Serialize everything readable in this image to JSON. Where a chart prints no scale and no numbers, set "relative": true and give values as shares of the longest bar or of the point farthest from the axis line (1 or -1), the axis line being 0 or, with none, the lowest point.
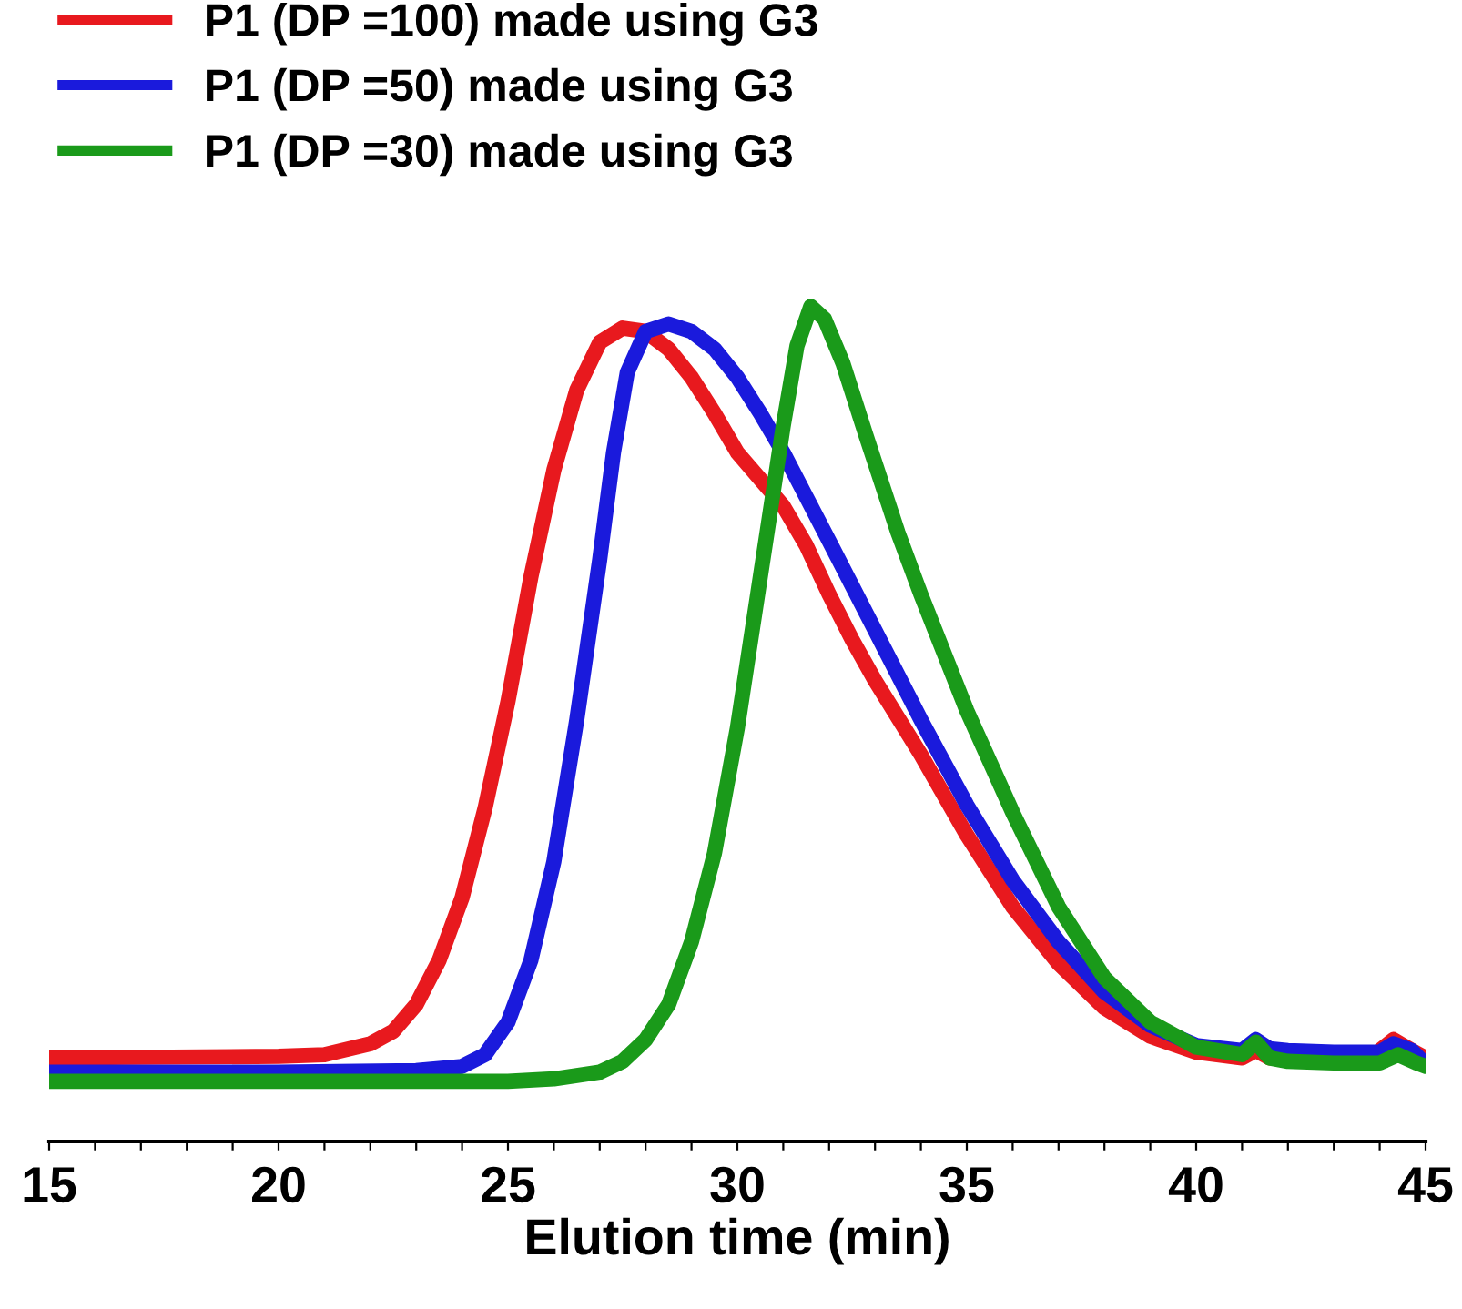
{
  "chart_data": {
    "type": "line",
    "relative": true,
    "xlabel": "Elution time (min)",
    "xlim": [
      15,
      45
    ],
    "xticks": [
      15,
      {
        "value": 16,
        "label": null
      },
      {
        "value": 17,
        "label": null
      },
      {
        "value": 18,
        "label": null
      },
      {
        "value": 19,
        "label": null
      },
      20,
      {
        "value": 21,
        "label": null
      },
      {
        "value": 22,
        "label": null
      },
      {
        "value": 23,
        "label": null
      },
      {
        "value": 24,
        "label": null
      },
      25,
      {
        "value": 26,
        "label": null
      },
      {
        "value": 27,
        "label": null
      },
      {
        "value": 28,
        "label": null
      },
      {
        "value": 29,
        "label": null
      },
      30,
      {
        "value": 31,
        "label": null
      },
      {
        "value": 32,
        "label": null
      },
      {
        "value": 33,
        "label": null
      },
      {
        "value": 34,
        "label": null
      },
      35,
      {
        "value": 36,
        "label": null
      },
      {
        "value": 37,
        "label": null
      },
      {
        "value": 38,
        "label": null
      },
      {
        "value": 39,
        "label": null
      },
      40,
      {
        "value": 41,
        "label": null
      },
      {
        "value": 42,
        "label": null
      },
      {
        "value": 43,
        "label": null
      },
      {
        "value": 44,
        "label": null
      },
      45
    ],
    "tick_labels": "x",
    "grid": false,
    "legend": "top left",
    "marker": "none",
    "line_style": "solid",
    "series": [
      {
        "name": "P1 (DP =100) made using G3",
        "color": "#e8191e",
        "x": [
          15,
          20,
          21,
          22,
          22.5,
          23,
          23.5,
          24,
          24.5,
          25,
          25.5,
          26,
          26.5,
          27,
          27.5,
          28,
          28.5,
          29,
          29.5,
          30,
          30.5,
          31,
          31.5,
          32,
          32.5,
          33,
          34,
          35,
          36,
          37,
          38,
          39,
          40,
          41,
          41.3,
          41.6,
          42,
          43,
          44,
          44.3,
          44.7,
          45
        ],
        "values": [
          0.1,
          0.102,
          0.104,
          0.117,
          0.132,
          0.164,
          0.217,
          0.292,
          0.399,
          0.527,
          0.676,
          0.804,
          0.9,
          0.957,
          0.974,
          0.97,
          0.949,
          0.915,
          0.872,
          0.825,
          0.793,
          0.761,
          0.714,
          0.655,
          0.601,
          0.552,
          0.463,
          0.367,
          0.281,
          0.213,
          0.16,
          0.126,
          0.107,
          0.1,
          0.109,
          0.1,
          null,
          null,
          0.109,
          0.122,
          0.109,
          0.1
        ]
      },
      {
        "name": "P1 (DP =50) made using G3",
        "color": "#1a1adc",
        "x": [
          15,
          20,
          23,
          24,
          24.5,
          25,
          25.5,
          26,
          26.5,
          27,
          27.3,
          27.6,
          28,
          28.5,
          29,
          29.5,
          30,
          30.5,
          31,
          31.5,
          32,
          33,
          34,
          35,
          36,
          37,
          38,
          39,
          40,
          41,
          41.3,
          41.6,
          42,
          43,
          44,
          44.3,
          44.7,
          45
        ],
        "values": [
          0.083,
          0.083,
          0.085,
          0.09,
          0.104,
          0.143,
          0.217,
          0.335,
          0.505,
          0.697,
          0.825,
          0.921,
          0.97,
          0.979,
          0.97,
          0.949,
          0.915,
          0.872,
          0.825,
          0.772,
          0.719,
          0.612,
          0.505,
          0.403,
          0.313,
          0.239,
          0.179,
          0.139,
          0.115,
          0.109,
          0.122,
          0.111,
          0.109,
          0.107,
          0.107,
          0.117,
          0.109,
          0.092
        ]
      },
      {
        "name": "P1 (DP =30) made using G3",
        "color": "#1a9a1a",
        "x": [
          15,
          20,
          25,
          26,
          27,
          27.5,
          28,
          28.5,
          29,
          29.5,
          30,
          30.5,
          31,
          31.3,
          31.6,
          31.9,
          32.3,
          32.8,
          33.5,
          34,
          35,
          36,
          37,
          38,
          39,
          40,
          41,
          41.3,
          41.6,
          42,
          43,
          44,
          44.4,
          44.8,
          45
        ],
        "values": [
          0.072,
          0.072,
          0.072,
          0.075,
          0.083,
          0.096,
          0.122,
          0.164,
          0.239,
          0.345,
          0.495,
          0.676,
          0.857,
          0.953,
          1.0,
          0.985,
          0.932,
          0.846,
          0.729,
          0.655,
          0.516,
          0.394,
          0.281,
          0.196,
          0.143,
          0.113,
          0.104,
          0.119,
          0.1,
          0.096,
          0.094,
          0.094,
          0.104,
          0.094,
          0.09
        ]
      }
    ]
  }
}
